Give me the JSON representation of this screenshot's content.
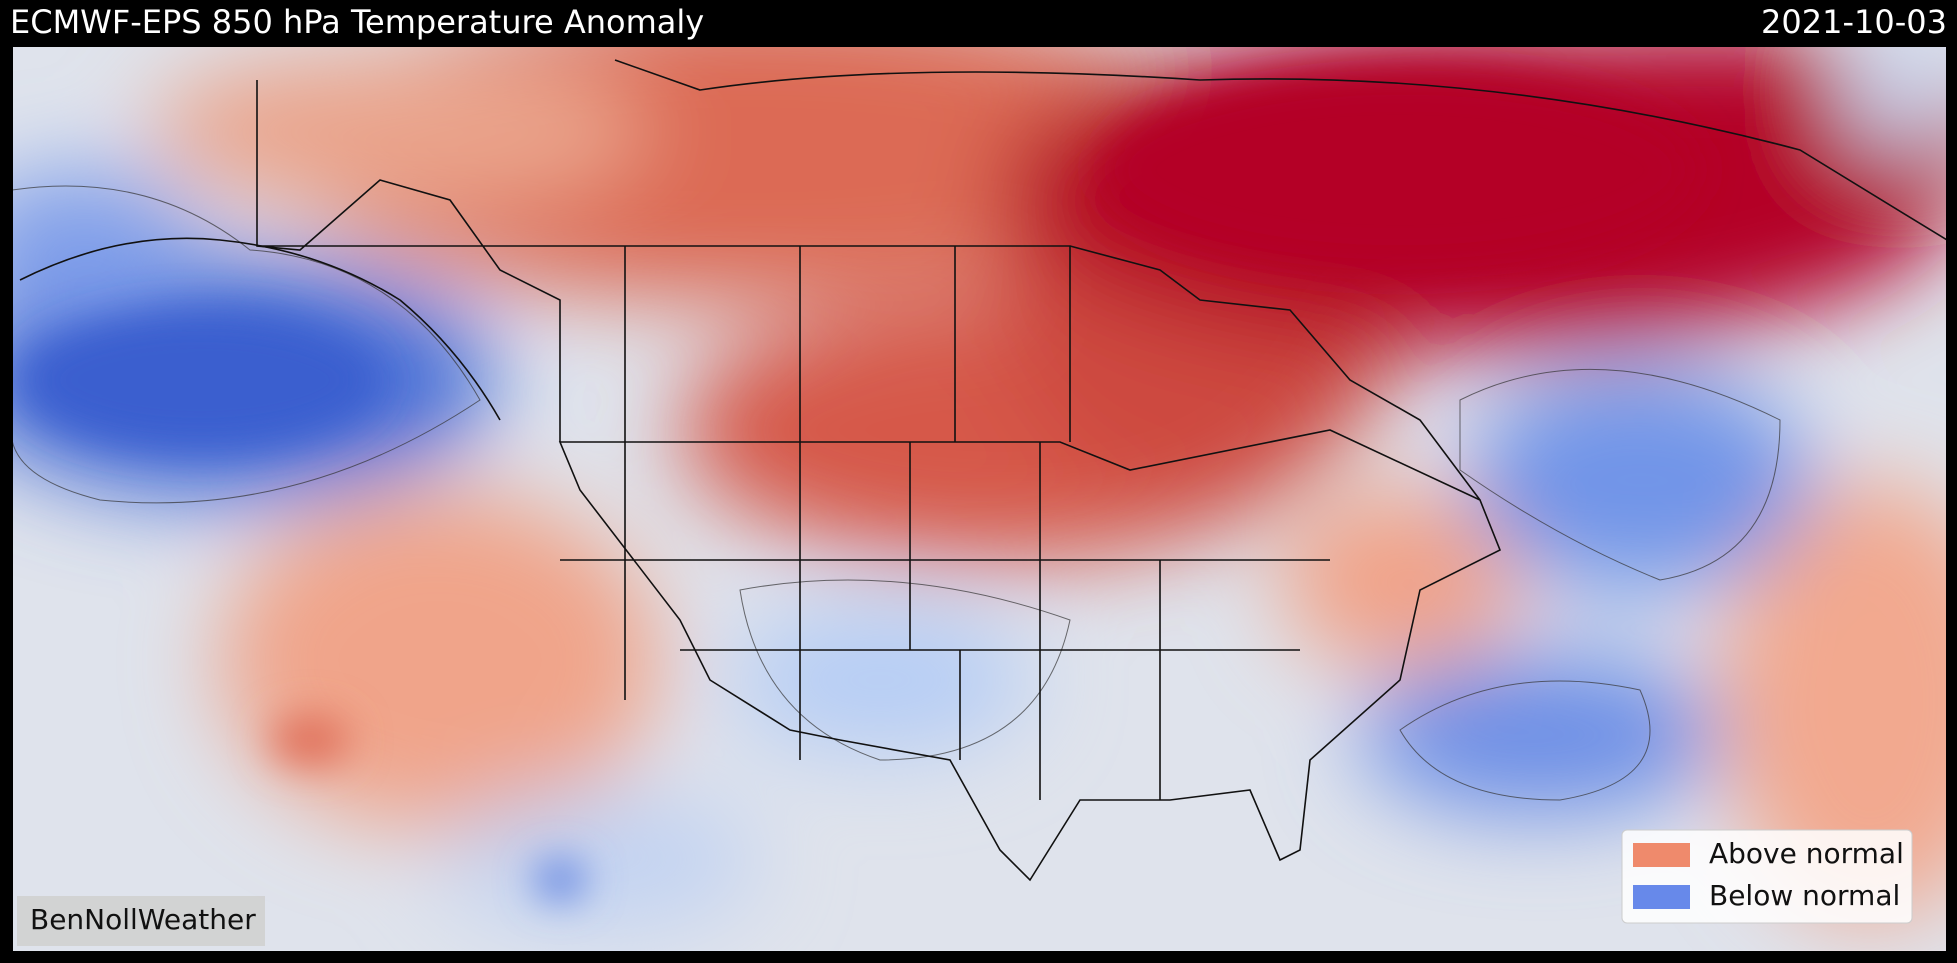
{
  "header": {
    "title": "ECMWF-EPS 850 hPa Temperature Anomaly",
    "date": "2021-10-03"
  },
  "legend": {
    "items": [
      {
        "label": "Above normal",
        "color": "#ef8a6c"
      },
      {
        "label": "Below normal",
        "color": "#6789ea"
      }
    ]
  },
  "watermark": "BenNollWeather"
}
